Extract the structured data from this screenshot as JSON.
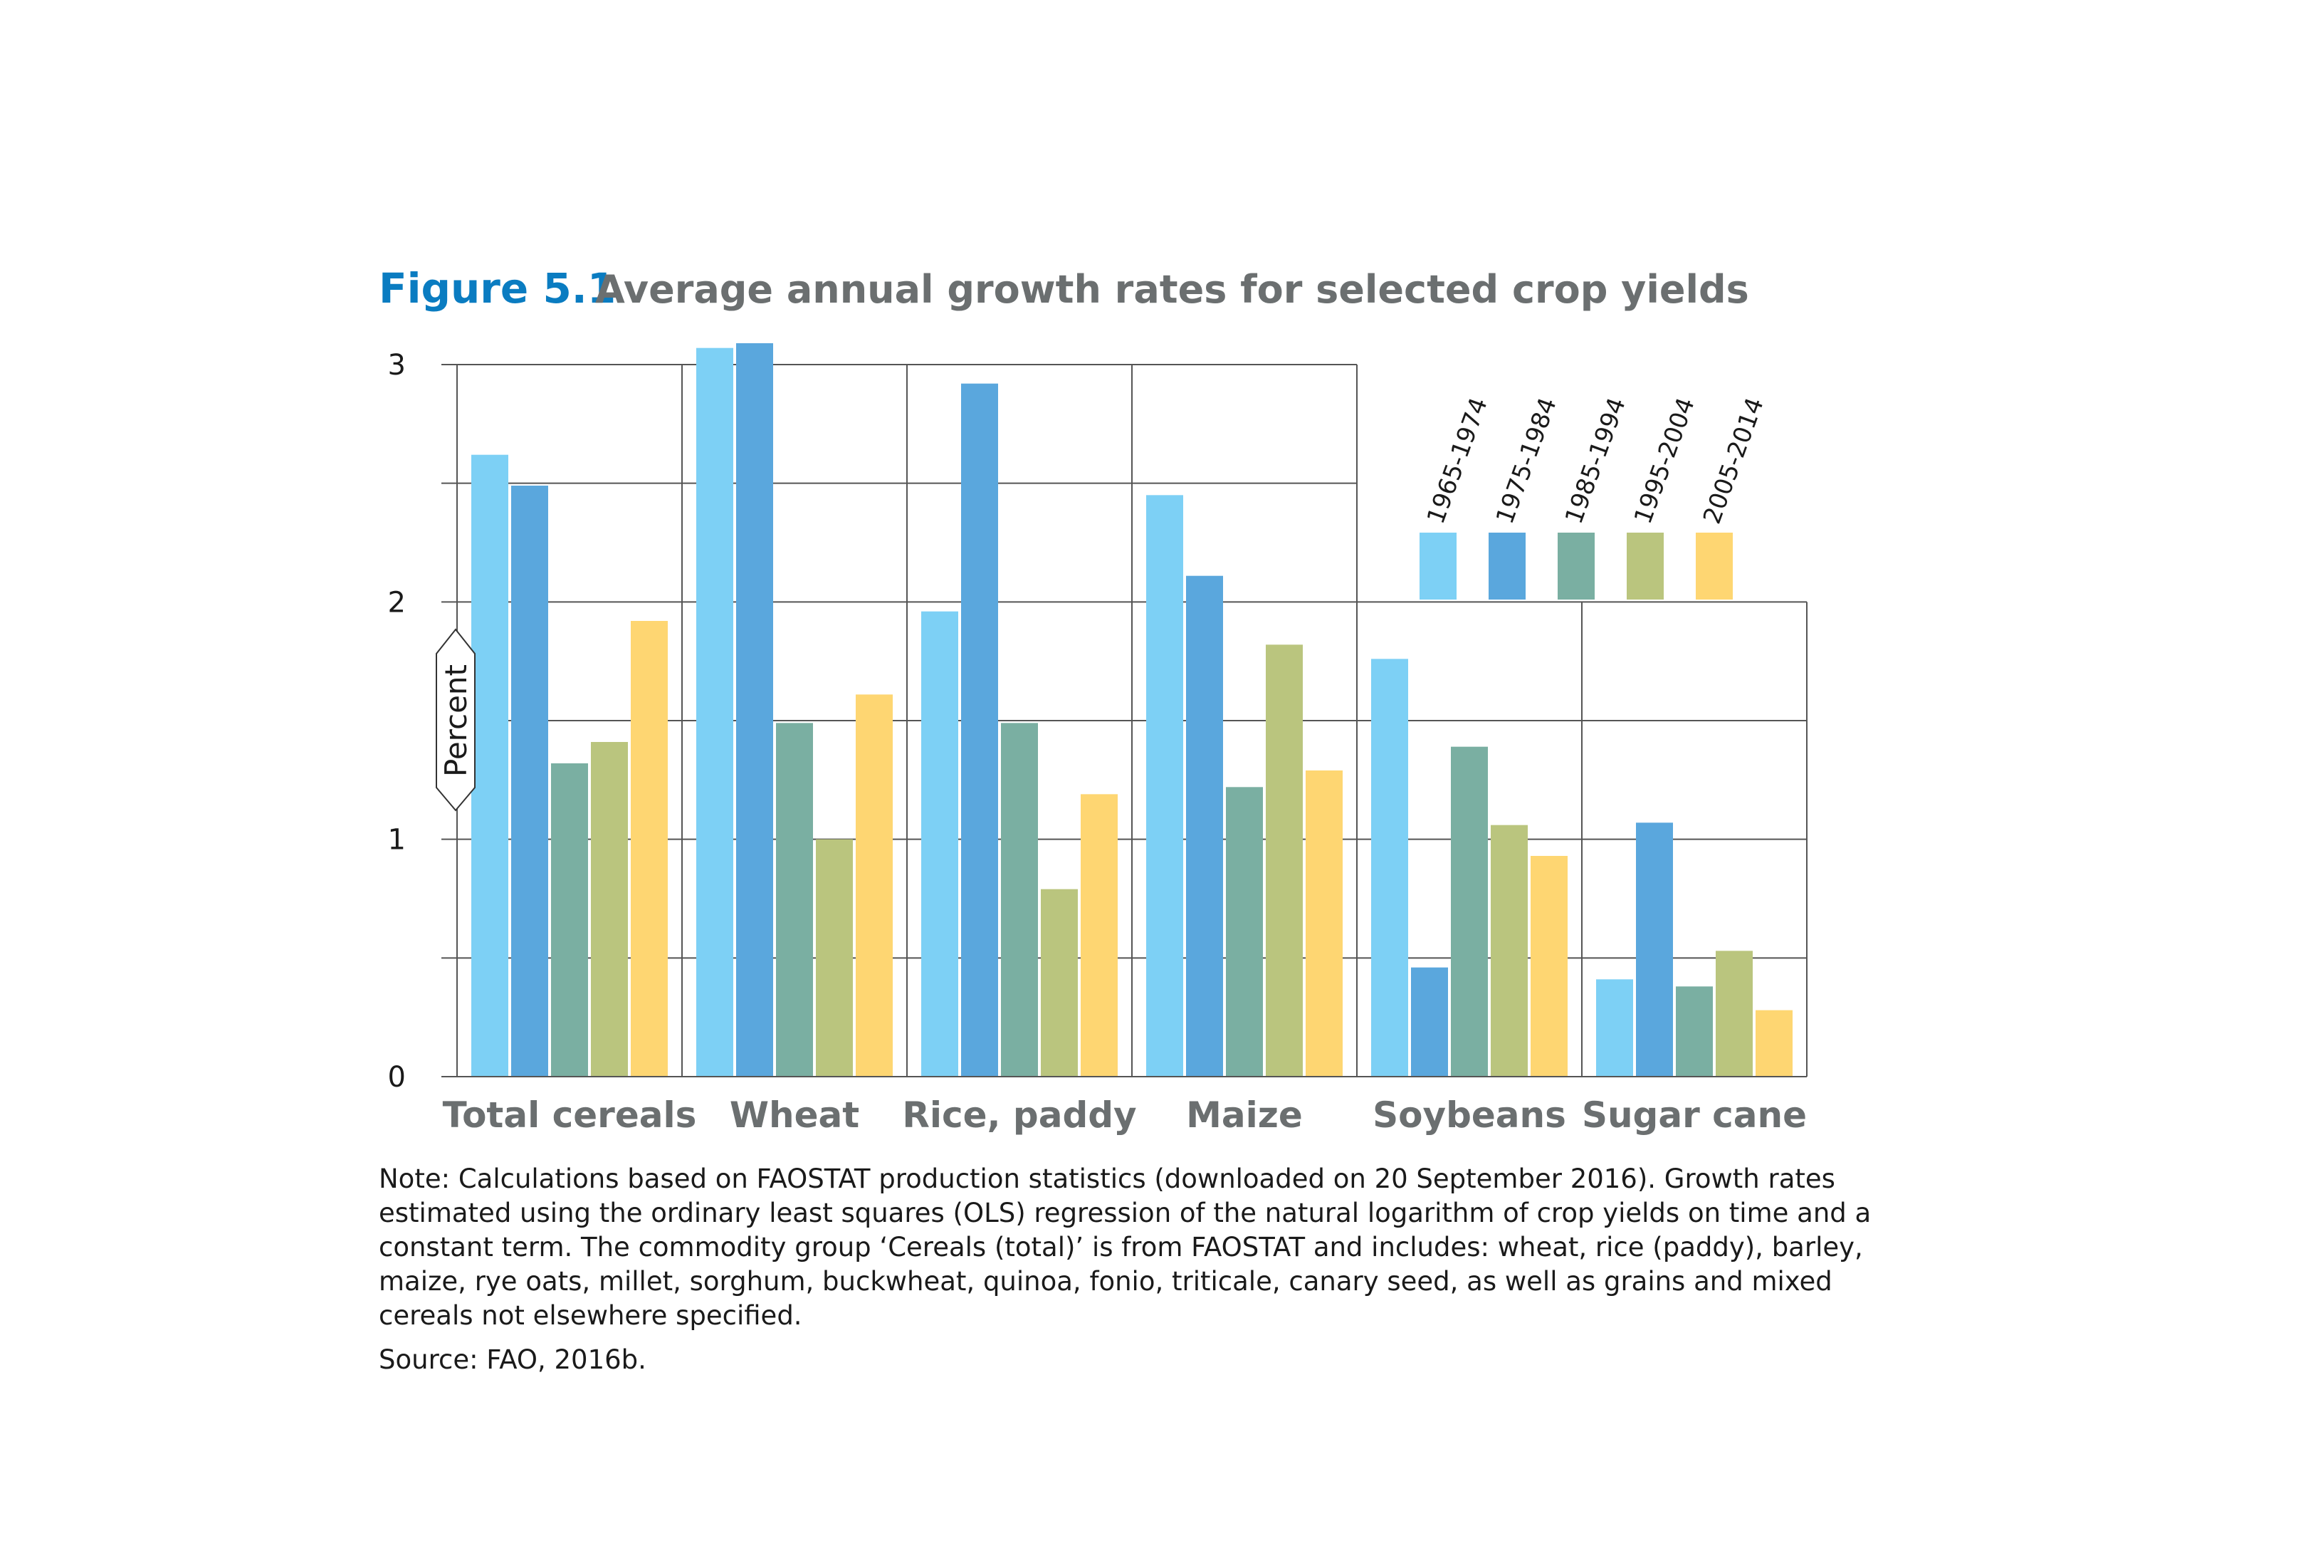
{
  "figure": {
    "label": "Figure 5.1",
    "title": "Average annual growth rates for selected crop yields"
  },
  "chart_data": {
    "type": "bar",
    "title": "Average annual growth rates for selected crop yields",
    "ylabel": "Percent",
    "xlabel": "",
    "ylim": [
      0,
      3
    ],
    "yticks": [
      0,
      1,
      2,
      3
    ],
    "grid": true,
    "legend_position": "top-right",
    "categories": [
      "Total cereals",
      "Wheat",
      "Rice, paddy",
      "Maize",
      "Soybeans",
      "Sugar cane"
    ],
    "series": [
      {
        "name": "1965-1974",
        "color": "#7dd0f5",
        "values": [
          2.62,
          3.07,
          1.96,
          2.45,
          1.76,
          0.41
        ]
      },
      {
        "name": "1975-1984",
        "color": "#5aa7dd",
        "values": [
          2.49,
          3.09,
          2.92,
          2.11,
          0.46,
          1.07
        ]
      },
      {
        "name": "1985-1994",
        "color": "#7aafa2",
        "values": [
          1.32,
          1.49,
          1.49,
          1.22,
          1.39,
          0.38
        ]
      },
      {
        "name": "1995-2004",
        "color": "#bac57e",
        "values": [
          1.41,
          1.0,
          0.79,
          1.82,
          1.06,
          0.53
        ]
      },
      {
        "name": "2005-2014",
        "color": "#fed672",
        "values": [
          1.92,
          1.61,
          1.19,
          1.29,
          0.93,
          0.28
        ]
      }
    ]
  },
  "notes": {
    "note": "Note: Calculations based on FAOSTAT production statistics (downloaded on 20 September 2016). Growth rates estimated using the ordinary least squares (OLS) regression of the natural logarithm of crop yields on time and a constant term. The commodity group ‘Cereals (total)’ is from FAOSTAT and includes: wheat, rice (paddy), barley, maize, rye oats, millet, sorghum, buckwheat, quinoa, fonio, triticale, canary seed, as well as grains and mixed cereals not elsewhere specified.",
    "source": "Source: FAO, 2016b."
  }
}
